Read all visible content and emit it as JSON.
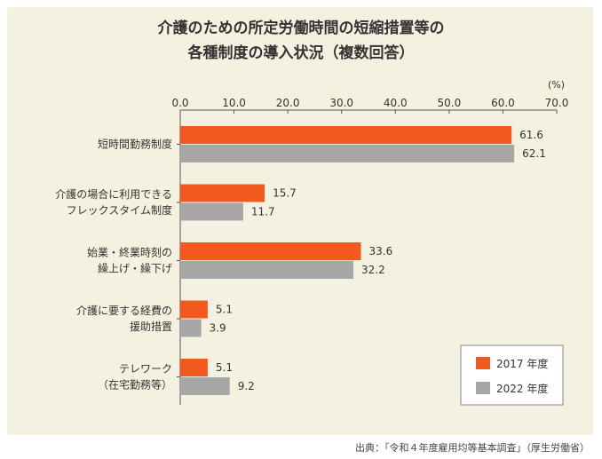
{
  "title_lines": [
    "介護のための所定労働時間の短縮措置等の",
    "各種制度の導入状況（複数回答）"
  ],
  "source": "出典：「令和４年度雇用均等基本調査」（厚生労働省）",
  "colors": {
    "s2017": "#f2591f",
    "s2022": "#a6a6a6",
    "axis": "#555555"
  },
  "chart_data": {
    "type": "bar",
    "orientation": "horizontal",
    "unit_label": "(%)",
    "xlim": [
      0,
      70
    ],
    "ticks": [
      "0.0",
      "10.0",
      "20.0",
      "30.0",
      "40.0",
      "50.0",
      "60.0",
      "70.0"
    ],
    "categories": [
      [
        "短時間勤務制度"
      ],
      [
        "介護の場合に利用できる",
        "フレックスタイム制度"
      ],
      [
        "始業・終業時刻の",
        "繰上げ・繰下げ"
      ],
      [
        "介護に要する経費の",
        "援助措置"
      ],
      [
        "テレワーク",
        "（在宅勤務等）"
      ]
    ],
    "series": [
      {
        "name": "2017 年度",
        "values": [
          61.6,
          15.7,
          33.6,
          5.1,
          5.1
        ],
        "labels": [
          "61.6",
          "15.7",
          "33.6",
          "5.1",
          "5.1"
        ]
      },
      {
        "name": "2022 年度",
        "values": [
          62.1,
          11.7,
          32.2,
          3.9,
          9.2
        ],
        "labels": [
          "62.1",
          "11.7",
          "32.2",
          "3.9",
          "9.2"
        ]
      }
    ],
    "legend_position": "bottom-right"
  }
}
